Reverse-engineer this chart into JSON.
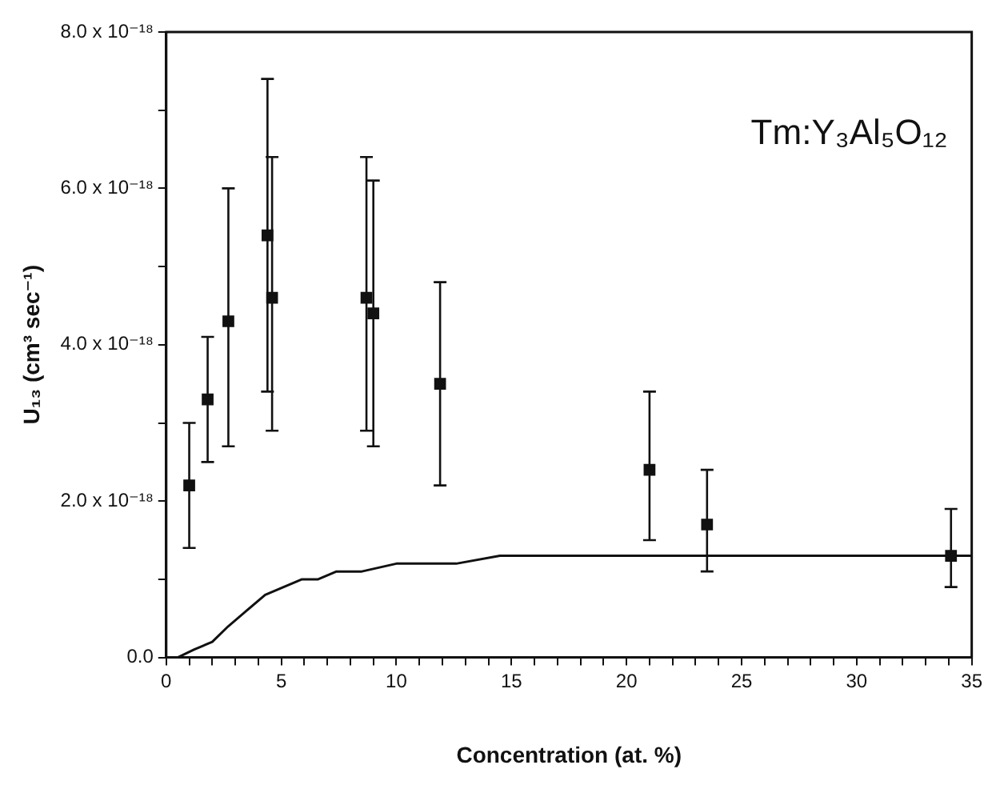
{
  "chart_data": {
    "type": "scatter",
    "xlabel": "Concentration (at. %)",
    "ylabel": "U₁₃ (cm³ sec⁻¹)",
    "annotations": [
      "Tm:Y₃Al₅O₁₂"
    ],
    "xlim": [
      0,
      35
    ],
    "xticks": [
      0,
      {
        "value": 1,
        "label": null
      },
      {
        "value": 2,
        "label": null
      },
      {
        "value": 3,
        "label": null
      },
      {
        "value": 4,
        "label": null
      },
      5,
      {
        "value": 6,
        "label": null
      },
      {
        "value": 7,
        "label": null
      },
      {
        "value": 8,
        "label": null
      },
      {
        "value": 9,
        "label": null
      },
      10,
      {
        "value": 11,
        "label": null
      },
      {
        "value": 12,
        "label": null
      },
      {
        "value": 13,
        "label": null
      },
      {
        "value": 14,
        "label": null
      },
      15,
      {
        "value": 16,
        "label": null
      },
      {
        "value": 17,
        "label": null
      },
      {
        "value": 18,
        "label": null
      },
      {
        "value": 19,
        "label": null
      },
      20,
      {
        "value": 21,
        "label": null
      },
      {
        "value": 22,
        "label": null
      },
      {
        "value": 23,
        "label": null
      },
      {
        "value": 24,
        "label": null
      },
      25,
      {
        "value": 26,
        "label": null
      },
      {
        "value": 27,
        "label": null
      },
      {
        "value": 28,
        "label": null
      },
      {
        "value": 29,
        "label": null
      },
      30,
      {
        "value": 31,
        "label": null
      },
      {
        "value": 32,
        "label": null
      },
      {
        "value": 33,
        "label": null
      },
      {
        "value": 34,
        "label": null
      },
      35
    ],
    "ylim": [
      0,
      8e-18
    ],
    "yticks": [
      {
        "value": 0,
        "label": "0.0"
      },
      {
        "value": 1e-18,
        "label": null
      },
      {
        "value": 2e-18,
        "label": "2.0 x 10⁻¹⁸"
      },
      {
        "value": 3e-18,
        "label": null
      },
      {
        "value": 4e-18,
        "label": "4.0 x 10⁻¹⁸"
      },
      {
        "value": 5e-18,
        "label": null
      },
      {
        "value": 6e-18,
        "label": "6.0 x 10⁻¹⁸"
      },
      {
        "value": 7e-18,
        "label": null
      },
      {
        "value": 8e-18,
        "label": "8.0 x 10⁻¹⁸"
      }
    ],
    "legend": false,
    "series": [
      {
        "type": "scatter",
        "marker": "square",
        "color": "#111111",
        "x": [
          1.0,
          1.8,
          2.7,
          4.4,
          4.6,
          8.7,
          9.0,
          11.9,
          21.0,
          23.5,
          34.1
        ],
        "values": [
          2.2e-18,
          3.3e-18,
          4.3e-18,
          5.4e-18,
          4.6e-18,
          4.6e-18,
          4.4e-18,
          3.5e-18,
          2.4e-18,
          1.7e-18,
          1.3e-18
        ],
        "errors": [
          [
            1.4e-18,
            3e-18
          ],
          [
            2.5e-18,
            4.1e-18
          ],
          [
            2.7e-18,
            6e-18
          ],
          [
            3.4e-18,
            7.4e-18
          ],
          [
            2.9e-18,
            6.4e-18
          ],
          [
            2.9e-18,
            6.4e-18
          ],
          [
            2.7e-18,
            6.1e-18
          ],
          [
            2.2e-18,
            4.8e-18
          ],
          [
            1.5e-18,
            3.4e-18
          ],
          [
            1.1e-18,
            2.4e-18
          ],
          [
            9e-19,
            1.9e-18
          ]
        ]
      },
      {
        "type": "line",
        "marker": "none",
        "color": "#111111",
        "x": [
          0,
          0.5,
          1.2,
          2.0,
          2.7,
          3.5,
          4.3,
          5.1,
          5.9,
          6.6,
          7.4,
          8.5,
          10.0,
          12.6,
          14.5,
          17,
          19.4,
          24,
          29.3,
          35
        ],
        "values": [
          0,
          0,
          1e-19,
          2e-19,
          4e-19,
          6e-19,
          8e-19,
          9e-19,
          1e-18,
          1e-18,
          1.1e-18,
          1.1e-18,
          1.2e-18,
          1.2e-18,
          1.3e-18,
          1.3e-18,
          1.3e-18,
          1.3e-18,
          1.3e-18,
          1.3e-18
        ]
      }
    ]
  }
}
